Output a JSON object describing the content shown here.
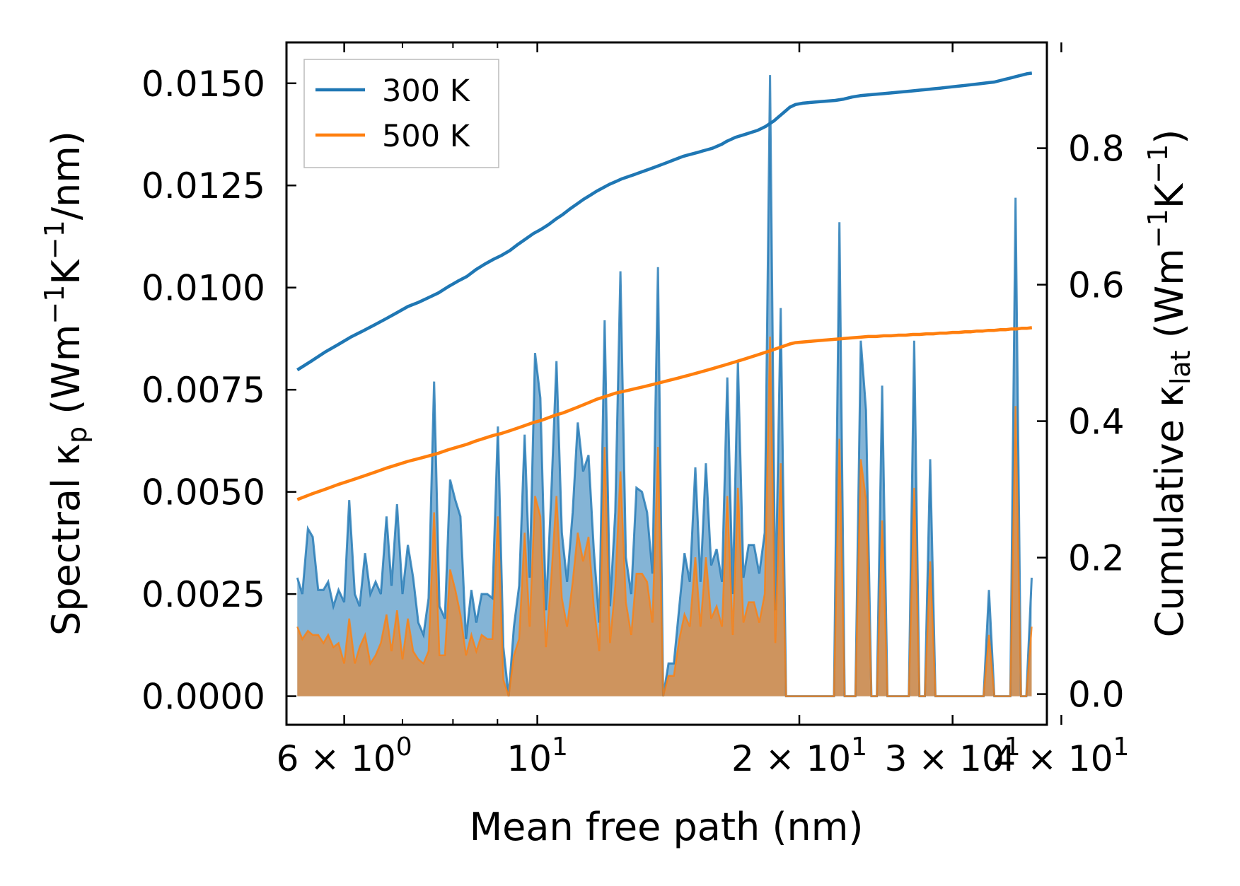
{
  "chart_data": {
    "type": "line",
    "xscale": "log",
    "xlabel": "Mean free path (nm)",
    "ylabel_left": "Spectral κ_p (Wm^-1K^-1/nm)",
    "ylabel_right": "Cumulative κ_lat (Wm^-1K^-1)",
    "left_axis": {
      "ylim": [
        -0.0007,
        0.016
      ],
      "ticks": [
        0.0,
        0.0025,
        0.005,
        0.0075,
        0.01,
        0.0125,
        0.015
      ],
      "tick_labels": [
        "0.0000",
        "0.0025",
        "0.0050",
        "0.0075",
        "0.0100",
        "0.0125",
        "0.0150"
      ]
    },
    "right_axis": {
      "ylim": [
        -0.045,
        0.955
      ],
      "ticks": [
        0.0,
        0.2,
        0.4,
        0.6,
        0.8
      ],
      "tick_labels": [
        "0.0",
        "0.2",
        "0.4",
        "0.6",
        "0.8"
      ]
    },
    "x_axis": {
      "xlim": [
        5.15,
        38.5
      ],
      "ticks": [
        6,
        10,
        20,
        30,
        40
      ],
      "tick_labels": [
        {
          "base": "6 × 10",
          "exp": "0"
        },
        {
          "base": "10",
          "exp": "1"
        },
        {
          "base": "2 × 10",
          "exp": "1"
        },
        {
          "base": "3 × 10",
          "exp": "1"
        },
        {
          "base": "4 × 10",
          "exp": "1"
        }
      ]
    },
    "legend": {
      "position": "top-left",
      "entries": [
        {
          "label": "300 K",
          "color": "#1f77b4"
        },
        {
          "label": "500 K",
          "color": "#ff7f0e"
        }
      ]
    },
    "series": [
      {
        "name": "300 K spectral",
        "axis": "left",
        "color": "#1f77b4",
        "fill": "#1f77b4",
        "x": [
          5.3,
          5.37,
          5.45,
          5.52,
          5.6,
          5.68,
          5.75,
          5.83,
          5.91,
          6.0,
          6.08,
          6.17,
          6.25,
          6.34,
          6.43,
          6.52,
          6.61,
          6.71,
          6.8,
          6.9,
          7.0,
          7.1,
          7.2,
          7.3,
          7.4,
          7.5,
          7.61,
          7.72,
          7.83,
          7.94,
          8.05,
          8.16,
          8.28,
          8.4,
          8.51,
          8.63,
          8.76,
          8.88,
          9.01,
          9.14,
          9.27,
          9.4,
          9.53,
          9.67,
          9.8,
          9.94,
          10.08,
          10.23,
          10.37,
          10.52,
          10.67,
          10.82,
          10.98,
          11.13,
          11.29,
          11.45,
          11.61,
          11.78,
          11.95,
          12.12,
          12.29,
          12.46,
          12.64,
          12.82,
          13.0,
          13.19,
          13.37,
          13.56,
          13.76,
          13.95,
          14.15,
          14.35,
          14.56,
          14.76,
          14.97,
          15.19,
          15.4,
          15.62,
          15.84,
          16.07,
          16.3,
          16.53,
          16.77,
          17.0,
          17.25,
          17.49,
          17.74,
          17.99,
          18.25,
          18.51,
          18.77,
          19.04,
          19.31,
          19.58,
          19.86,
          20.14,
          20.43,
          20.72,
          21.01,
          21.31,
          21.62,
          21.92,
          22.24,
          22.55,
          22.87,
          23.2,
          23.53,
          23.86,
          24.2,
          24.55,
          24.9,
          25.25,
          25.61,
          25.97,
          26.34,
          26.72,
          27.1,
          27.48,
          27.88,
          28.27,
          28.67,
          29.08,
          29.5,
          29.92,
          30.34,
          30.77,
          31.21,
          31.66,
          32.11,
          32.56,
          33.03,
          33.5,
          33.97,
          34.46,
          34.95,
          35.44,
          35.95,
          36.46,
          36.98
        ],
        "values": [
          0.0029,
          0.0025,
          0.0041,
          0.0039,
          0.0026,
          0.0026,
          0.0028,
          0.0022,
          0.0026,
          0.0023,
          0.0048,
          0.0025,
          0.0022,
          0.0035,
          0.0025,
          0.0028,
          0.0025,
          0.0044,
          0.0027,
          0.0047,
          0.0025,
          0.0037,
          0.0029,
          0.0018,
          0.0015,
          0.0024,
          0.0077,
          0.0022,
          0.0019,
          0.0053,
          0.0048,
          0.0044,
          0.0014,
          0.0026,
          0.0018,
          0.0025,
          0.0025,
          0.0024,
          0.0066,
          0.0012,
          0.0,
          0.0017,
          0.0027,
          0.0064,
          0.0029,
          0.0084,
          0.0073,
          0.0021,
          0.0048,
          0.0082,
          0.004,
          0.0028,
          0.0045,
          0.0067,
          0.0055,
          0.0059,
          0.0036,
          0.0018,
          0.0092,
          0.0022,
          0.0045,
          0.0104,
          0.0034,
          0.0025,
          0.0051,
          0.005,
          0.0045,
          0.003,
          0.0105,
          0.0,
          0.0008,
          0.0008,
          0.0022,
          0.0035,
          0.0028,
          0.0056,
          0.0028,
          0.0057,
          0.0032,
          0.0036,
          0.0028,
          0.0078,
          0.0025,
          0.0082,
          0.0029,
          0.0037,
          0.0037,
          0.003,
          0.004,
          0.0152,
          0.0021,
          0.0095,
          0.0,
          0.0,
          0.0,
          0.0,
          0.0,
          0.0,
          0.0,
          0.0,
          0.0,
          0.0,
          0.0116,
          0.0,
          0.0,
          0.0,
          0.0087,
          0.007,
          0.0,
          0.0,
          0.0076,
          0.0,
          0.0,
          0.0,
          0.0,
          0.0,
          0.0087,
          0.0,
          0.0,
          0.0058,
          0.0,
          0.0,
          0.0,
          0.0,
          0.0,
          0.0,
          0.0,
          0.0,
          0.0,
          0.0,
          0.0026,
          0.0,
          0.0,
          0.0,
          0.0,
          0.0122,
          0.0,
          0.0,
          0.0029
        ]
      },
      {
        "name": "500 K spectral",
        "axis": "left",
        "color": "#ff7f0e",
        "fill": "#ff7f0e",
        "x": [
          5.3,
          5.37,
          5.45,
          5.52,
          5.6,
          5.68,
          5.75,
          5.83,
          5.91,
          6.0,
          6.08,
          6.17,
          6.25,
          6.34,
          6.43,
          6.52,
          6.61,
          6.71,
          6.8,
          6.9,
          7.0,
          7.1,
          7.2,
          7.3,
          7.4,
          7.5,
          7.61,
          7.72,
          7.83,
          7.94,
          8.05,
          8.16,
          8.28,
          8.4,
          8.51,
          8.63,
          8.76,
          8.88,
          9.01,
          9.14,
          9.27,
          9.4,
          9.53,
          9.67,
          9.8,
          9.94,
          10.08,
          10.23,
          10.37,
          10.52,
          10.67,
          10.82,
          10.98,
          11.13,
          11.29,
          11.45,
          11.61,
          11.78,
          11.95,
          12.12,
          12.29,
          12.46,
          12.64,
          12.82,
          13.0,
          13.19,
          13.37,
          13.56,
          13.76,
          13.95,
          14.15,
          14.35,
          14.56,
          14.76,
          14.97,
          15.19,
          15.4,
          15.62,
          15.84,
          16.07,
          16.3,
          16.53,
          16.77,
          17.0,
          17.25,
          17.49,
          17.74,
          17.99,
          18.25,
          18.51,
          18.77,
          19.04,
          19.31,
          19.58,
          19.86,
          20.14,
          20.43,
          20.72,
          21.01,
          21.31,
          21.62,
          21.92,
          22.24,
          22.55,
          22.87,
          23.2,
          23.53,
          23.86,
          24.2,
          24.55,
          24.9,
          25.25,
          25.61,
          25.97,
          26.34,
          26.72,
          27.1,
          27.48,
          27.88,
          28.27,
          28.67,
          29.08,
          29.5,
          29.92,
          30.34,
          30.77,
          31.21,
          31.66,
          32.11,
          32.56,
          33.03,
          33.5,
          33.97,
          34.46,
          34.95,
          35.44,
          35.95,
          36.46,
          36.98
        ],
        "values": [
          0.0017,
          0.0014,
          0.0016,
          0.0015,
          0.0015,
          0.0013,
          0.0015,
          0.0012,
          0.0013,
          0.0008,
          0.0019,
          0.0008,
          0.0012,
          0.0015,
          0.0008,
          0.001,
          0.0013,
          0.002,
          0.0011,
          0.0021,
          0.0009,
          0.0019,
          0.0011,
          0.0009,
          0.0008,
          0.0011,
          0.0045,
          0.001,
          0.001,
          0.0031,
          0.0026,
          0.002,
          0.001,
          0.0015,
          0.0011,
          0.0015,
          0.0014,
          0.0014,
          0.0044,
          0.0004,
          0.0,
          0.001,
          0.0014,
          0.004,
          0.0017,
          0.0049,
          0.0044,
          0.0012,
          0.0028,
          0.0049,
          0.0024,
          0.0017,
          0.0028,
          0.004,
          0.0033,
          0.0039,
          0.0022,
          0.0011,
          0.0061,
          0.0013,
          0.0027,
          0.0055,
          0.0023,
          0.0015,
          0.003,
          0.003,
          0.0028,
          0.0018,
          0.0061,
          0.0,
          0.0005,
          0.0005,
          0.0014,
          0.002,
          0.0017,
          0.0034,
          0.0017,
          0.0034,
          0.0019,
          0.0022,
          0.0017,
          0.0049,
          0.0015,
          0.0051,
          0.0018,
          0.0023,
          0.0023,
          0.0018,
          0.0025,
          0.0088,
          0.0013,
          0.0057,
          0.0,
          0.0,
          0.0,
          0.0,
          0.0,
          0.0,
          0.0,
          0.0,
          0.0,
          0.0,
          0.0063,
          0.0,
          0.0,
          0.0,
          0.0058,
          0.0048,
          0.0,
          0.0,
          0.0043,
          0.0,
          0.0,
          0.0,
          0.0,
          0.0,
          0.0051,
          0.0,
          0.0,
          0.0033,
          0.0,
          0.0,
          0.0,
          0.0,
          0.0,
          0.0,
          0.0,
          0.0,
          0.0,
          0.0,
          0.0015,
          0.0,
          0.0,
          0.0,
          0.0,
          0.0071,
          0.0,
          0.0,
          0.0017
        ]
      },
      {
        "name": "300 K",
        "axis": "right",
        "color": "#1f77b4",
        "x": [
          5.3,
          5.5,
          5.7,
          5.9,
          6.1,
          6.3,
          6.5,
          6.7,
          6.9,
          7.1,
          7.3,
          7.5,
          7.7,
          7.9,
          8.1,
          8.3,
          8.5,
          8.7,
          8.9,
          9.1,
          9.3,
          9.5,
          9.7,
          9.9,
          10.1,
          10.3,
          10.5,
          10.7,
          10.9,
          11.1,
          11.3,
          11.5,
          11.7,
          11.9,
          12.1,
          12.3,
          12.5,
          12.7,
          12.9,
          13.1,
          13.3,
          13.5,
          13.7,
          13.9,
          14.1,
          14.3,
          14.5,
          14.7,
          14.9,
          15.1,
          15.3,
          15.5,
          15.7,
          15.9,
          16.1,
          16.3,
          16.5,
          16.7,
          16.9,
          17.1,
          17.3,
          17.5,
          17.7,
          17.9,
          18.1,
          18.3,
          18.5,
          18.7,
          18.9,
          19.1,
          19.3,
          19.5,
          19.8,
          20.2,
          20.6,
          21.0,
          21.5,
          22.0,
          22.5,
          23.0,
          23.5,
          24.0,
          24.5,
          25.0,
          25.5,
          26.0,
          26.5,
          27.0,
          27.5,
          28.0,
          28.5,
          29.0,
          29.5,
          30.0,
          30.5,
          31.0,
          31.5,
          32.0,
          32.5,
          33.0,
          33.5,
          34.0,
          34.5,
          35.0,
          35.5,
          36.0,
          36.5,
          37.0
        ],
        "values": [
          0.475,
          0.488,
          0.501,
          0.512,
          0.523,
          0.532,
          0.541,
          0.55,
          0.559,
          0.568,
          0.574,
          0.581,
          0.588,
          0.597,
          0.605,
          0.612,
          0.622,
          0.63,
          0.637,
          0.643,
          0.65,
          0.659,
          0.667,
          0.675,
          0.681,
          0.688,
          0.696,
          0.703,
          0.711,
          0.718,
          0.725,
          0.731,
          0.737,
          0.742,
          0.747,
          0.751,
          0.755,
          0.758,
          0.761,
          0.764,
          0.767,
          0.77,
          0.773,
          0.776,
          0.779,
          0.782,
          0.785,
          0.788,
          0.79,
          0.792,
          0.794,
          0.796,
          0.798,
          0.8,
          0.803,
          0.806,
          0.81,
          0.813,
          0.816,
          0.818,
          0.82,
          0.822,
          0.824,
          0.826,
          0.829,
          0.832,
          0.836,
          0.84,
          0.845,
          0.85,
          0.855,
          0.86,
          0.864,
          0.866,
          0.867,
          0.868,
          0.869,
          0.87,
          0.872,
          0.875,
          0.877,
          0.878,
          0.879,
          0.88,
          0.881,
          0.882,
          0.883,
          0.884,
          0.885,
          0.886,
          0.887,
          0.888,
          0.889,
          0.89,
          0.891,
          0.892,
          0.893,
          0.894,
          0.895,
          0.896,
          0.897,
          0.899,
          0.901,
          0.903,
          0.905,
          0.907,
          0.909,
          0.91
        ]
      },
      {
        "name": "500 K",
        "axis": "right",
        "color": "#ff7f0e",
        "x": [
          5.3,
          5.5,
          5.7,
          5.9,
          6.1,
          6.3,
          6.5,
          6.7,
          6.9,
          7.1,
          7.3,
          7.5,
          7.7,
          7.9,
          8.1,
          8.3,
          8.5,
          8.7,
          8.9,
          9.1,
          9.3,
          9.5,
          9.7,
          9.9,
          10.1,
          10.3,
          10.5,
          10.7,
          10.9,
          11.1,
          11.3,
          11.5,
          11.7,
          11.9,
          12.1,
          12.3,
          12.5,
          12.7,
          12.9,
          13.1,
          13.3,
          13.5,
          13.7,
          13.9,
          14.1,
          14.3,
          14.5,
          14.7,
          14.9,
          15.1,
          15.3,
          15.5,
          15.7,
          15.9,
          16.1,
          16.3,
          16.5,
          16.7,
          16.9,
          17.1,
          17.3,
          17.5,
          17.7,
          17.9,
          18.1,
          18.3,
          18.5,
          18.7,
          18.9,
          19.1,
          19.3,
          19.5,
          19.8,
          20.2,
          20.6,
          21.0,
          21.5,
          22.0,
          22.5,
          23.0,
          23.5,
          24.0,
          24.5,
          25.0,
          25.5,
          26.0,
          26.5,
          27.0,
          27.5,
          28.0,
          28.5,
          29.0,
          29.5,
          30.0,
          30.5,
          31.0,
          31.5,
          32.0,
          32.5,
          33.0,
          33.5,
          34.0,
          34.5,
          35.0,
          35.5,
          36.0,
          36.5,
          37.0
        ],
        "values": [
          0.285,
          0.293,
          0.3,
          0.307,
          0.313,
          0.319,
          0.325,
          0.331,
          0.336,
          0.341,
          0.345,
          0.349,
          0.353,
          0.358,
          0.362,
          0.366,
          0.371,
          0.375,
          0.379,
          0.382,
          0.386,
          0.39,
          0.394,
          0.398,
          0.401,
          0.405,
          0.409,
          0.412,
          0.416,
          0.42,
          0.424,
          0.428,
          0.432,
          0.435,
          0.438,
          0.441,
          0.443,
          0.445,
          0.447,
          0.449,
          0.451,
          0.453,
          0.455,
          0.457,
          0.459,
          0.461,
          0.463,
          0.465,
          0.467,
          0.469,
          0.471,
          0.473,
          0.475,
          0.477,
          0.479,
          0.481,
          0.483,
          0.485,
          0.487,
          0.489,
          0.491,
          0.493,
          0.495,
          0.497,
          0.499,
          0.501,
          0.503,
          0.505,
          0.507,
          0.509,
          0.511,
          0.513,
          0.515,
          0.516,
          0.517,
          0.518,
          0.519,
          0.52,
          0.521,
          0.522,
          0.523,
          0.524,
          0.524,
          0.525,
          0.525,
          0.526,
          0.526,
          0.527,
          0.527,
          0.528,
          0.528,
          0.529,
          0.529,
          0.53,
          0.53,
          0.531,
          0.531,
          0.532,
          0.532,
          0.533,
          0.533,
          0.534,
          0.534,
          0.535,
          0.535,
          0.536,
          0.536,
          0.537
        ]
      }
    ]
  }
}
